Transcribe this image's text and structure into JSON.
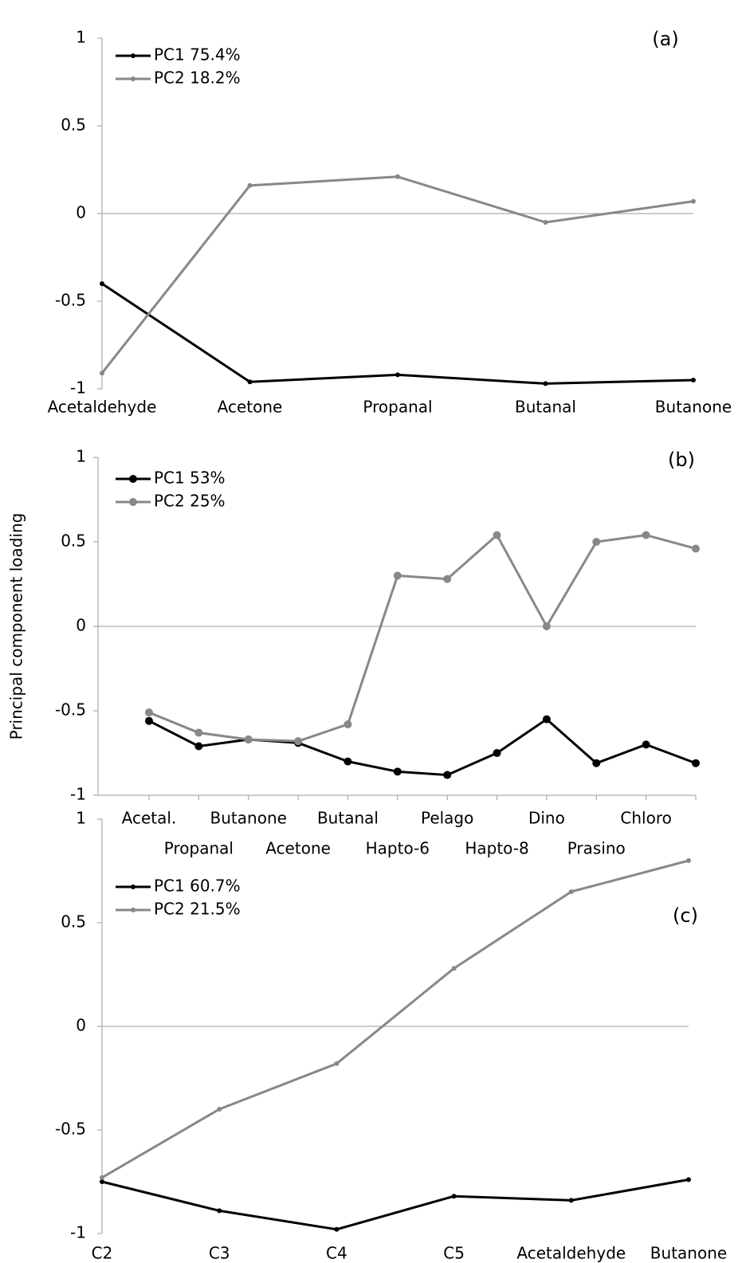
{
  "chart_data": [
    {
      "type": "line",
      "title": "(a)",
      "categories": [
        "Acetaldehyde",
        "Acetone",
        "Propanal",
        "Butanal",
        "Butanone"
      ],
      "series": [
        {
          "name": "PC1 75.4%",
          "color": "#000000",
          "values": [
            -0.4,
            -0.96,
            -0.92,
            -0.97,
            -0.95
          ]
        },
        {
          "name": "PC2 18.2%",
          "color": "#888888",
          "values": [
            -0.91,
            0.16,
            0.21,
            -0.05,
            0.07
          ]
        }
      ],
      "ylim": [
        -1,
        1
      ],
      "yticks": [
        -1,
        -0.5,
        0,
        0.5,
        1
      ]
    },
    {
      "type": "line",
      "title": "(b)",
      "ylabel": "Principal component loading",
      "categories": [
        "Acetal.",
        "Propanal",
        "Butanone",
        "Acetone",
        "Butanal",
        "Hapto-6",
        "Pelago",
        "Hapto-8",
        "Dino",
        "Prasino",
        "Chloro",
        null
      ],
      "series": [
        {
          "name": "PC1 53%",
          "color": "#000000",
          "values": [
            -0.56,
            -0.71,
            -0.67,
            -0.69,
            -0.8,
            -0.86,
            -0.88,
            -0.75,
            -0.55,
            -0.81,
            -0.7,
            -0.81
          ]
        },
        {
          "name": "PC2 25%",
          "color": "#888888",
          "values": [
            -0.51,
            -0.63,
            -0.67,
            -0.68,
            -0.58,
            0.3,
            0.28,
            0.54,
            0.0,
            0.5,
            0.54,
            0.46
          ]
        }
      ],
      "ylim": [
        -1,
        1
      ],
      "yticks": [
        -1,
        -0.5,
        0,
        0.5,
        1
      ]
    },
    {
      "type": "line",
      "title": "(c)",
      "categories": [
        "C2",
        "C3",
        "C4",
        "C5",
        "Acetaldehyde",
        "Butanone"
      ],
      "series": [
        {
          "name": "PC1 60.7%",
          "color": "#000000",
          "values": [
            -0.75,
            -0.89,
            -0.98,
            -0.82,
            -0.84,
            -0.74
          ]
        },
        {
          "name": "PC2 21.5%",
          "color": "#888888",
          "values": [
            -0.73,
            -0.4,
            -0.18,
            0.28,
            0.65,
            0.8
          ]
        }
      ],
      "ylim": [
        -1,
        1
      ],
      "yticks": [
        -1,
        -0.5,
        0,
        0.5,
        1
      ]
    }
  ]
}
